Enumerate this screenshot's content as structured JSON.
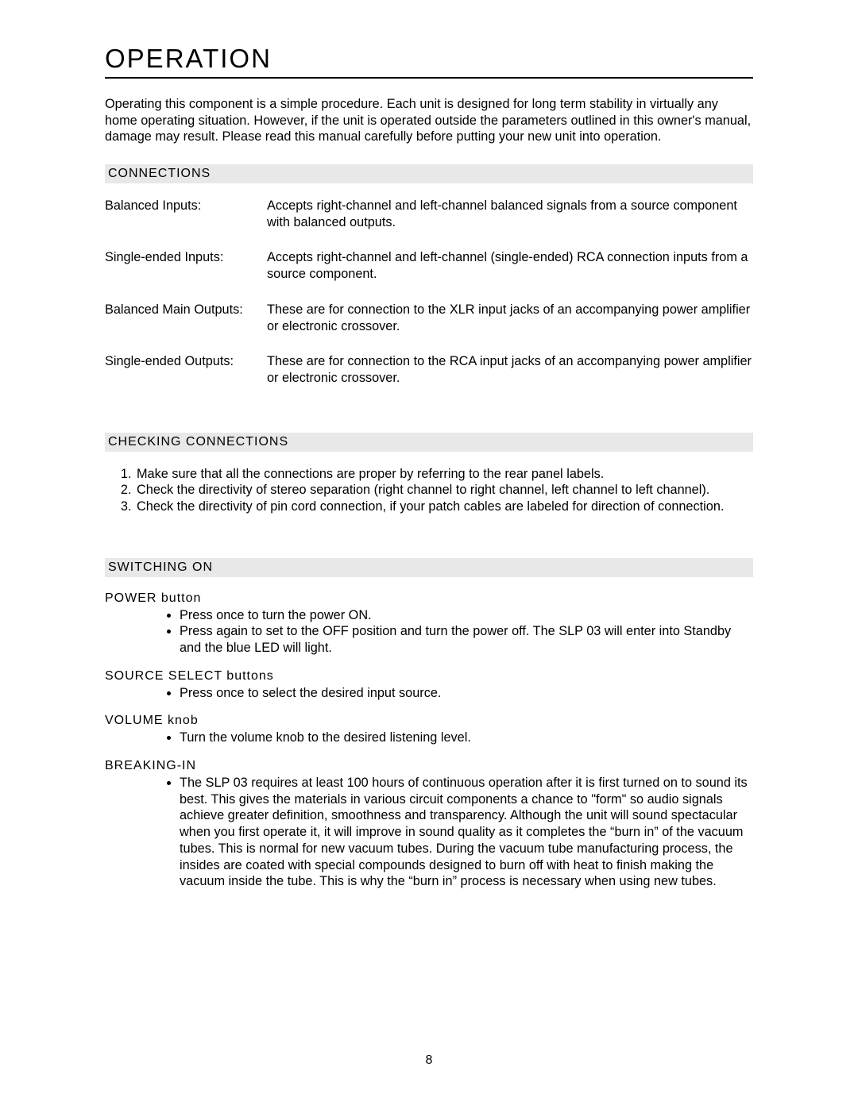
{
  "title": "OPERATION",
  "intro": "Operating this component is a simple procedure. Each unit is designed for long term stability in virtually any home operating situation. However, if the unit is operated outside the parameters outlined in this owner's manual, damage may result. Please read this manual carefully before putting your new unit into operation.",
  "sections": {
    "connections": {
      "heading": "CONNECTIONS",
      "items": [
        {
          "term": "Balanced Inputs:",
          "desc": "Accepts right-channel and left-channel balanced signals from a source component with balanced outputs."
        },
        {
          "term": "Single-ended Inputs:",
          "desc": "Accepts right-channel and left-channel (single-ended) RCA connection inputs from a source component."
        },
        {
          "term": "Balanced Main Outputs:",
          "desc": "These are for connection to the XLR input jacks of an accompanying power amplifier or electronic crossover."
        },
        {
          "term": "Single-ended Outputs:",
          "desc": "These are for connection to the RCA input jacks of an accompanying power amplifier or electronic crossover."
        }
      ]
    },
    "checking": {
      "heading": "CHECKING CONNECTIONS",
      "items": [
        "Make sure that all the connections are proper by referring to the rear panel labels.",
        "Check the directivity of stereo separation (right channel to right channel, left channel to left channel).",
        "Check the directivity of pin cord connection, if your patch cables are labeled for direction of connection."
      ]
    },
    "switching": {
      "heading": "SWITCHING ON",
      "groups": [
        {
          "sub": "POWER button",
          "bullets": [
            "Press once to turn the power ON.",
            "Press again to set to the OFF position and turn the power off. The SLP 03 will enter into Standby and the blue LED will light."
          ]
        },
        {
          "sub": "SOURCE SELECT buttons",
          "bullets": [
            "Press once to select the desired input source."
          ]
        },
        {
          "sub": "VOLUME knob",
          "bullets": [
            "Turn the volume knob to the desired listening level."
          ]
        },
        {
          "sub": "BREAKING-IN",
          "bullets": [
            "The SLP 03 requires at least 100 hours of continuous operation after it is first turned on to sound its best. This gives the materials in various circuit components a chance to \"form\" so audio signals achieve greater definition, smoothness and transparency. Although the unit will sound spectacular when you first operate it, it will improve in sound quality as it completes the “burn in” of the vacuum tubes. This is normal for new vacuum tubes. During the vacuum tube manufacturing process, the insides are coated with special compounds designed to burn off with heat to finish making the vacuum inside the tube. This is why the “burn in” process is necessary when using new tubes."
          ]
        }
      ]
    }
  },
  "page_number": "8"
}
